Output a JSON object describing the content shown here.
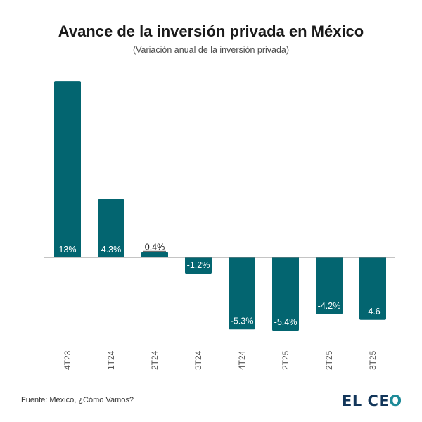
{
  "header": {
    "title": "Avance de la inversión privada en México",
    "subtitle": "(Variación anual de la inversión privada)"
  },
  "footer": {
    "source": "Fuente: México, ¿Cómo Vamos?",
    "logo_text": "EL CEO",
    "logo_main": "EL CE",
    "logo_o": "O"
  },
  "colors": {
    "bar": "#036570",
    "axis": "#8a8a8a",
    "label_inside": "#ffffff",
    "label_outside": "#1a1a1a"
  },
  "chart_data": {
    "type": "bar",
    "title": "Avance de la inversión privada en México",
    "subtitle": "(Variación anual de la inversión privada)",
    "xlabel": "",
    "ylabel": "",
    "categories": [
      "4T23",
      "1T24",
      "2T24",
      "3T24",
      "4T24",
      "2T25",
      "2T25",
      "3T25"
    ],
    "values": [
      13,
      4.3,
      0.4,
      -1.2,
      -5.3,
      -5.4,
      -4.2,
      -4.6
    ],
    "data_labels": [
      "13%",
      "4.3%",
      "0.4%",
      "-1.2%",
      "-5.3%",
      "-5.4%",
      "-4.2%",
      "-4.6"
    ],
    "ylim": [
      -6,
      13
    ],
    "grid": false,
    "legend": "none"
  }
}
